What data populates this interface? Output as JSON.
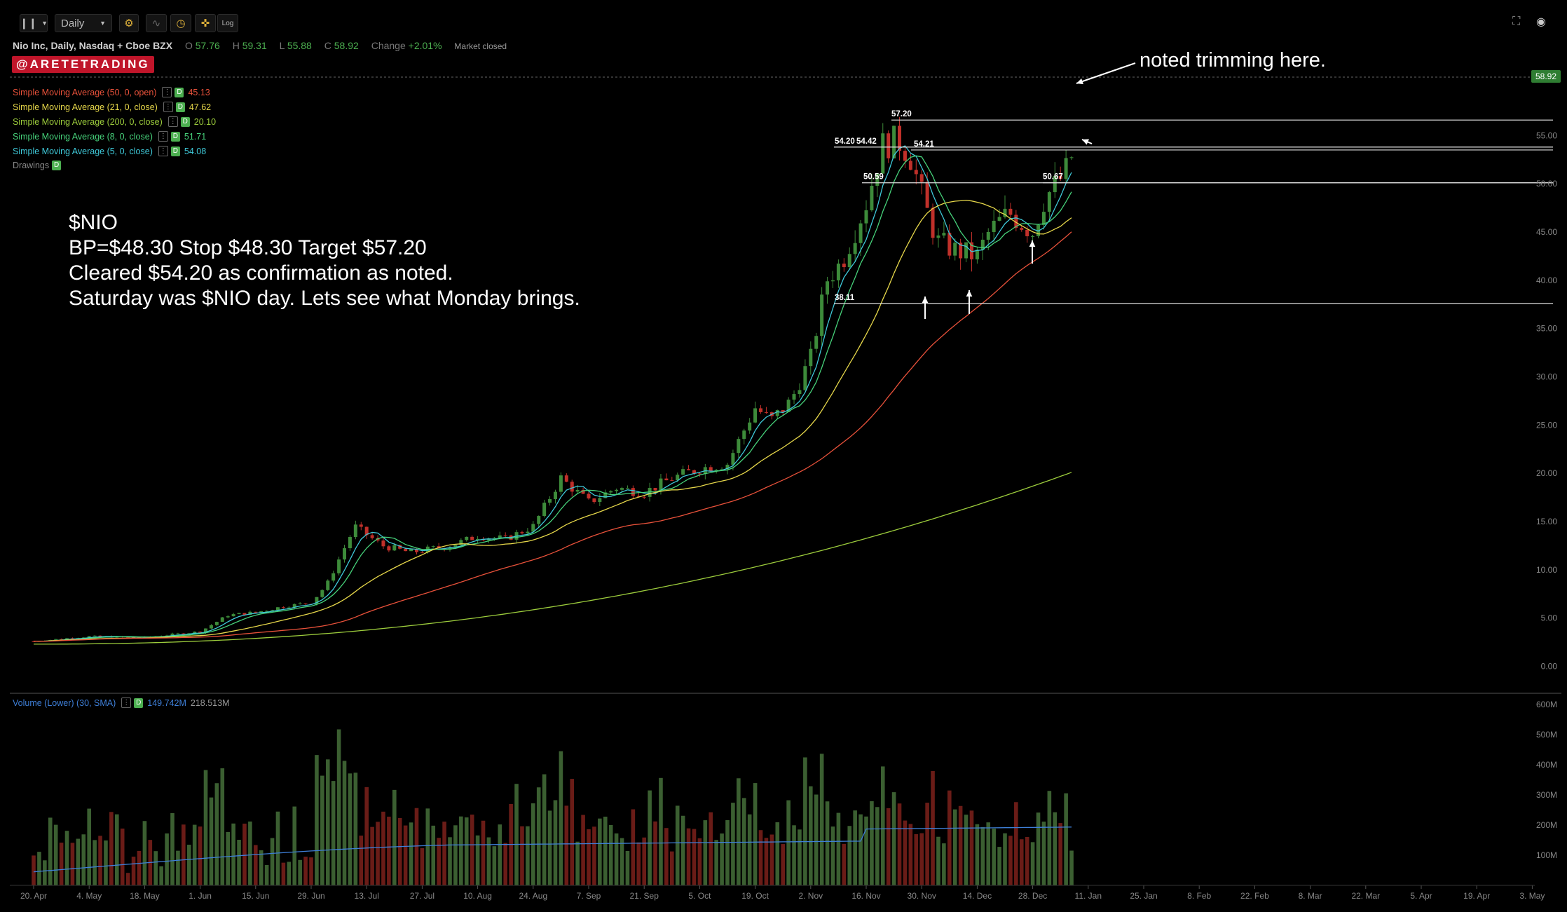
{
  "toolbar": {
    "interval": "Daily",
    "log_label": "Log"
  },
  "symbol": {
    "title": "Nio Inc, Daily, Nasdaq + Cboe BZX",
    "open_label": "O",
    "open": "57.76",
    "high_label": "H",
    "high": "59.31",
    "low_label": "L",
    "low": "55.88",
    "close_label": "C",
    "close": "58.92",
    "change_label": "Change",
    "change": "+2.01%",
    "status": "Market closed"
  },
  "badge": "@ARETETRADING",
  "indicators": [
    {
      "label": "Simple Moving Average (50, 0, open)",
      "value": "45.13",
      "color": "#e8513a"
    },
    {
      "label": "Simple Moving Average (21, 0, close)",
      "value": "47.62",
      "color": "#e6d74a"
    },
    {
      "label": "Simple Moving Average (200, 0, close)",
      "value": "20.10",
      "color": "#9ccc3c"
    },
    {
      "label": "Simple Moving Average (8, 0, close)",
      "value": "51.71",
      "color": "#46d17a"
    },
    {
      "label": "Simple Moving Average (5, 0, close)",
      "value": "54.08",
      "color": "#3fc9d9"
    }
  ],
  "drawings_label": "Drawings",
  "volume_label": "Volume (Lower) (30, SMA)",
  "volume_values": [
    "149.742M",
    "218.513M"
  ],
  "note_lines": [
    "$NIO",
    "BP=$48.30 Stop $48.30 Target $57.20",
    "Cleared $54.20 as confirmation as noted.",
    "Saturday was $NIO day. Lets see what Monday brings."
  ],
  "trim_note": "noted trimming here.",
  "colors": {
    "up": "#3d8b3a",
    "down": "#c0302a",
    "vol_up": "#3b5f31",
    "vol_down": "#6a1c17",
    "vol_sma": "#3e7fd8"
  },
  "chart_data": {
    "type": "candlestick",
    "price_axis": {
      "range": [
        -2.5,
        62.5
      ],
      "ticks": [
        "0.00",
        "5.00",
        "10.00",
        "15.00",
        "20.00",
        "25.00",
        "30.00",
        "35.00",
        "40.00",
        "45.00",
        "50.00",
        "55.00"
      ]
    },
    "last_price": "58.92",
    "date_ticks": [
      "20. Apr",
      "4. May",
      "18. May",
      "1. Jun",
      "15. Jun",
      "29. Jun",
      "13. Jul",
      "27. Jul",
      "10. Aug",
      "24. Aug",
      "7. Sep",
      "21. Sep",
      "5. Oct",
      "19. Oct",
      "2. Nov",
      "16. Nov",
      "30. Nov",
      "14. Dec",
      "28. Dec",
      "11. Jan",
      "25. Jan",
      "8. Feb",
      "22. Feb",
      "8. Mar",
      "22. Mar",
      "5. Apr",
      "19. Apr",
      "3. May"
    ],
    "volume_axis": {
      "range": [
        0,
        600
      ],
      "unit": "M",
      "ticks": [
        "100M",
        "200M",
        "300M",
        "400M",
        "500M",
        "600M"
      ]
    },
    "price_path": [
      [
        "20. Apr",
        2.6
      ],
      [
        "4. May",
        3.1
      ],
      [
        "18. May",
        3.0
      ],
      [
        "1. Jun",
        3.6
      ],
      [
        "8. Jun",
        5.3
      ],
      [
        "15. Jun",
        5.6
      ],
      [
        "22. Jun",
        6.2
      ],
      [
        "29. Jun",
        6.6
      ],
      [
        "3. Jul",
        8.5
      ],
      [
        "10. Jul",
        14.5
      ],
      [
        "17. Jul",
        12.5
      ],
      [
        "24. Jul",
        11.8
      ],
      [
        "3. Aug",
        12.5
      ],
      [
        "10. Aug",
        13.5
      ],
      [
        "17. Aug",
        13.2
      ],
      [
        "24. Aug",
        14.5
      ],
      [
        "31. Aug",
        19.5
      ],
      [
        "7. Sep",
        17.0
      ],
      [
        "14. Sep",
        18.5
      ],
      [
        "21. Sep",
        18.0
      ],
      [
        "28. Sep",
        19.5
      ],
      [
        "5. Oct",
        20.5
      ],
      [
        "12. Oct",
        21.0
      ],
      [
        "19. Oct",
        26.8
      ],
      [
        "23. Oct",
        25.5
      ],
      [
        "28. Oct",
        27.5
      ],
      [
        "2. Nov",
        32.0
      ],
      [
        "6. Nov",
        40.0
      ],
      [
        "10. Nov",
        42.0
      ],
      [
        "16. Nov",
        48.0
      ],
      [
        "20. Nov",
        54.0
      ],
      [
        "24. Nov",
        54.5
      ],
      [
        "27. Nov",
        53.0
      ],
      [
        "1. Dec",
        47.5
      ],
      [
        "4. Dec",
        44.0
      ],
      [
        "9. Dec",
        43.0
      ],
      [
        "14. Dec",
        42.5
      ],
      [
        "17. Dec",
        45.0
      ],
      [
        "22. Dec",
        47.0
      ],
      [
        "28. Dec",
        45.0
      ],
      [
        "31. Dec",
        48.5
      ],
      [
        "5. Jan",
        51.0
      ],
      [
        "7. Jan",
        53.0
      ],
      [
        "8. Jan",
        58.92
      ]
    ],
    "horizontal_levels": [
      {
        "label": "57.20",
        "value": 56.6
      },
      {
        "label": "54.20",
        "value": 53.8
      },
      {
        "label": "54.42",
        "value": 53.8
      },
      {
        "label": "54.21",
        "value": 53.5
      },
      {
        "label": "50.59",
        "value": 50.1
      },
      {
        "label": "50.67",
        "value": 50.1
      },
      {
        "label": "38.11",
        "value": 37.6
      }
    ],
    "sma_series": [
      {
        "name": "Simple Moving Average (5, 0, close)",
        "last": 54.08
      },
      {
        "name": "Simple Moving Average (8, 0, close)",
        "last": 51.71
      },
      {
        "name": "Simple Moving Average (21, 0, close)",
        "last": 47.62
      },
      {
        "name": "Simple Moving Average (50, 0, open)",
        "last": 45.13
      },
      {
        "name": "Simple Moving Average (200, 0, close)",
        "last": 20.1
      }
    ]
  }
}
